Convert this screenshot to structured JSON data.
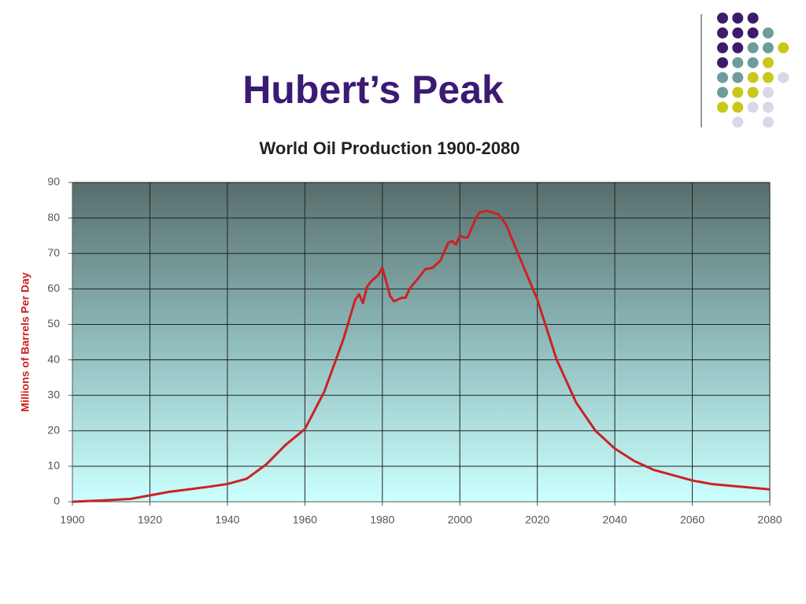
{
  "slide_title": "Hubert’s Peak",
  "chart_data": {
    "type": "line",
    "title": "World Oil Production 1900-2080",
    "y_label": "Millions of Barrels Per Day",
    "x": [
      1900,
      1910,
      1915,
      1920,
      1925,
      1930,
      1935,
      1940,
      1945,
      1950,
      1955,
      1960,
      1965,
      1970,
      1973,
      1974,
      1975,
      1976,
      1977,
      1979,
      1980,
      1981,
      1982,
      1983,
      1985,
      1986,
      1987,
      1990,
      1991,
      1993,
      1995,
      1997,
      1998,
      1999,
      2000,
      2001,
      2002,
      2004,
      2005,
      2007,
      2010,
      2012,
      2015,
      2020,
      2025,
      2030,
      2035,
      2040,
      2045,
      2050,
      2055,
      2060,
      2065,
      2070,
      2075,
      2080
    ],
    "series": [
      {
        "name": "World Oil Production",
        "color": "#cc2222",
        "values": [
          0,
          0.5,
          0.8,
          1.8,
          2.8,
          3.5,
          4.2,
          5,
          6.5,
          10.5,
          16,
          20.5,
          31,
          46,
          57,
          58.5,
          56,
          60.5,
          62,
          64,
          66,
          62,
          58,
          56.5,
          57.5,
          57.5,
          60,
          64,
          65.5,
          66,
          68,
          73,
          73.5,
          72.5,
          75,
          74.5,
          74.5,
          79.5,
          81.5,
          82,
          81,
          78,
          70,
          57,
          40,
          28,
          20,
          15,
          11.5,
          9,
          7.5,
          6,
          5,
          4.5,
          4,
          3.5
        ]
      }
    ],
    "xlim": [
      1900,
      2080
    ],
    "xticks": [
      1900,
      1920,
      1940,
      1960,
      1980,
      2000,
      2020,
      2040,
      2060,
      2080
    ],
    "ylim": [
      0,
      90
    ],
    "yticks": [
      0,
      10,
      20,
      30,
      40,
      50,
      60,
      70,
      80,
      90
    ],
    "grid": true
  }
}
